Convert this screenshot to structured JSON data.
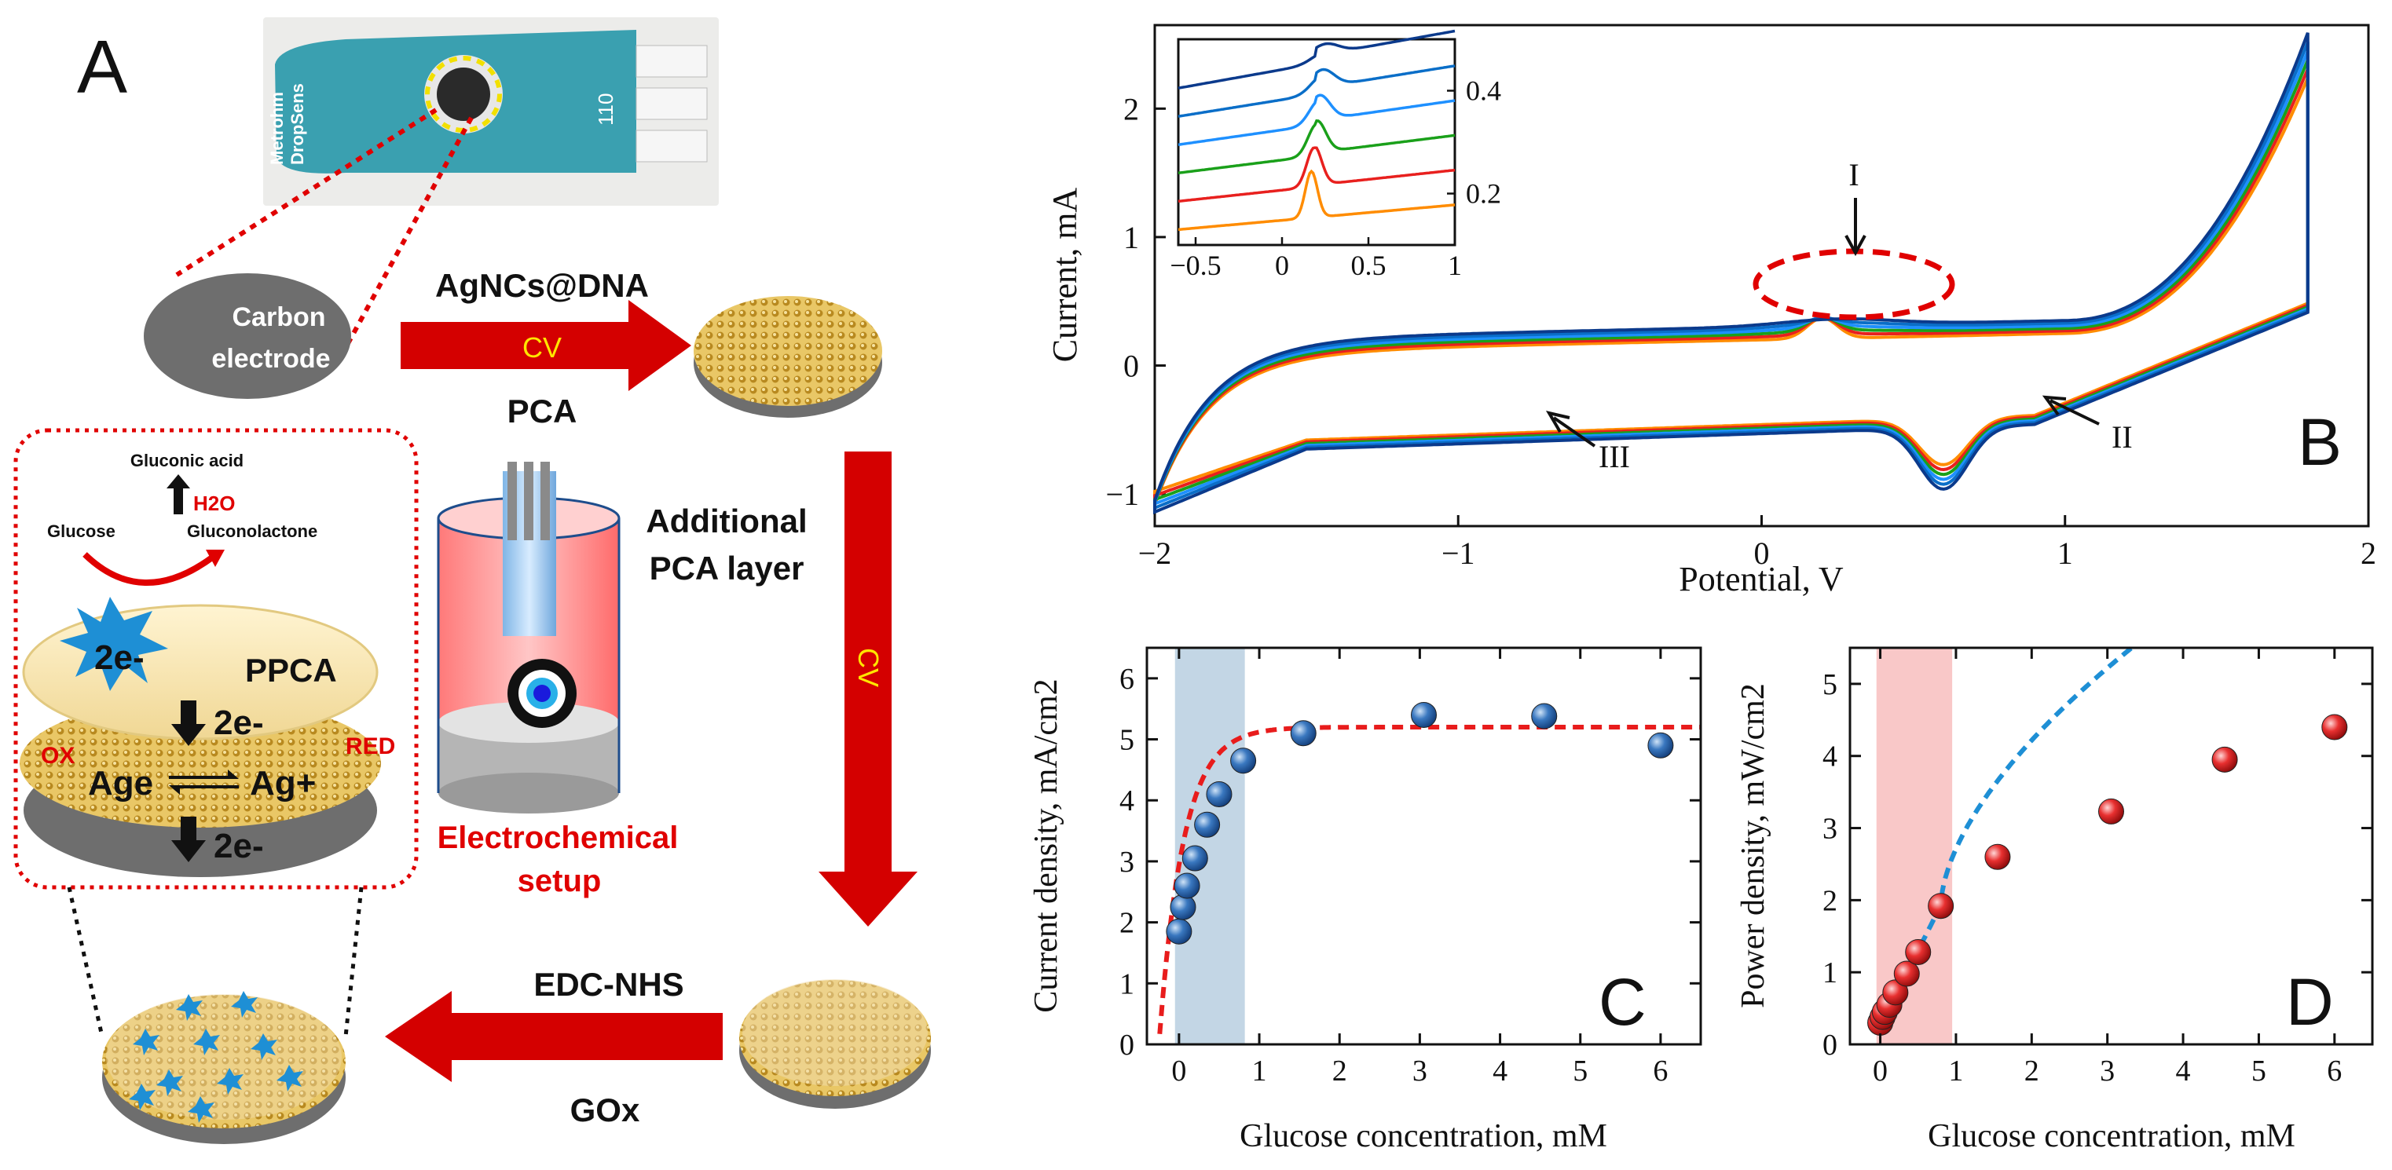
{
  "panel_a": {
    "label": "A",
    "sensor_brand_line1": "Metrohm",
    "sensor_brand_line2": "DropSens",
    "sensor_model": "110",
    "carbon_electrode_line1": "Carbon",
    "carbon_electrode_line2": "electrode",
    "step1_top": "AgNCs@DNA",
    "step1_arrow": "CV",
    "step1_bottom": "PCA",
    "step2_line1": "Additional",
    "step2_line2": "PCA layer",
    "step2_arrow": "CV",
    "step3_top": "EDC-NHS",
    "step3_bottom": "GOx",
    "setup_line1": "Electrochemical",
    "setup_line2": "setup",
    "mech": {
      "gluconic_acid": "Gluconic acid",
      "h2o": "H2O",
      "glucose": "Glucose",
      "gluconolactone": "Gluconolactone",
      "electron_top": "2e-",
      "ppca": "PPCA",
      "electron_mid": "2e-",
      "ox": "OX",
      "red": "RED",
      "ag0": "Age",
      "agplus": "Ag+",
      "electron_bottom": "2e-"
    },
    "colors": {
      "arrow": "#d40000",
      "electrode": "#6e6e6e",
      "gold": "#e0b84a",
      "dashed": "#e00000"
    }
  },
  "chart_data": [
    {
      "panel": "B",
      "type": "line",
      "xlabel": "Potential, V",
      "ylabel": "Current, mA",
      "xlim": [
        -2,
        2
      ],
      "ylim": [
        -1.25,
        2.65
      ],
      "xticks": [
        "−2",
        "−1",
        "0",
        "1",
        "2"
      ],
      "yticks": [
        "−1",
        "0",
        "1",
        "2"
      ],
      "annotations": [
        "I",
        "II",
        "III"
      ],
      "series_colors": [
        "#ff8c00",
        "#e8201e",
        "#1aa01a",
        "#1e90ff",
        "#0a6ec8",
        "#0b3a8c"
      ],
      "inset": {
        "xlim": [
          -0.6,
          1.0
        ],
        "ylim": [
          0.1,
          0.5
        ],
        "xticks": [
          "−0.5",
          "0",
          "0.5",
          "1"
        ],
        "yticks": [
          "0.2",
          "0.4"
        ]
      }
    },
    {
      "panel": "C",
      "type": "scatter",
      "xlabel": "Glucose concentration, mM",
      "ylabel": "Current density, mA/cm2",
      "xlim": [
        -0.4,
        6.5
      ],
      "ylim": [
        0,
        6.5
      ],
      "xticks": [
        "0",
        "1",
        "2",
        "3",
        "4",
        "5",
        "6"
      ],
      "yticks": [
        "0",
        "1",
        "2",
        "3",
        "4",
        "5",
        "6"
      ],
      "shaded_x": [
        -0.05,
        0.82
      ],
      "x": [
        0.0,
        0.05,
        0.1,
        0.2,
        0.35,
        0.5,
        0.8,
        1.55,
        3.05,
        4.55,
        6.0
      ],
      "y": [
        1.85,
        2.25,
        2.6,
        3.05,
        3.6,
        4.1,
        4.65,
        5.1,
        5.4,
        5.38,
        4.9
      ],
      "fit": "saturation",
      "color": "#1e5fa8"
    },
    {
      "panel": "D",
      "type": "scatter",
      "xlabel": "Glucose concentration, mM",
      "ylabel": "Power density, mW/cm2",
      "xlim": [
        -0.4,
        6.5
      ],
      "ylim": [
        0,
        5.5
      ],
      "xticks": [
        "0",
        "1",
        "2",
        "3",
        "4",
        "5",
        "6"
      ],
      "yticks": [
        "0",
        "1",
        "2",
        "3",
        "4",
        "5"
      ],
      "shaded_x": [
        -0.05,
        0.95
      ],
      "x": [
        0.0,
        0.03,
        0.06,
        0.12,
        0.2,
        0.35,
        0.5,
        0.8,
        1.55,
        3.05,
        4.55,
        6.0
      ],
      "y": [
        0.3,
        0.38,
        0.45,
        0.55,
        0.72,
        0.98,
        1.28,
        1.92,
        2.6,
        3.23,
        3.95,
        4.4
      ],
      "fit": "power",
      "color": "#e01818"
    }
  ],
  "panel_labels": {
    "b": "B",
    "c": "C",
    "d": "D"
  }
}
